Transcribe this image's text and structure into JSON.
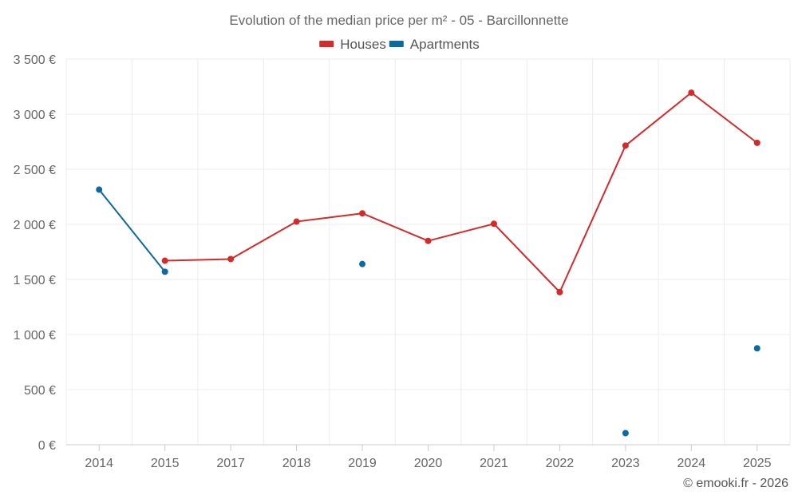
{
  "chart_data": {
    "type": "line",
    "title": "Evolution of the median price per m² - 05 - Barcillonnette",
    "categories": [
      "2014",
      "2015",
      "2017",
      "2018",
      "2019",
      "2020",
      "2021",
      "2022",
      "2023",
      "2024",
      "2025"
    ],
    "series": [
      {
        "name": "Houses",
        "color": "#d42a2a",
        "values": [
          null,
          1670,
          1685,
          2025,
          2100,
          1850,
          2005,
          1385,
          2715,
          3195,
          2740
        ]
      },
      {
        "name": "Apartments",
        "color": "#0b6aa0",
        "values": [
          2315,
          1570,
          null,
          null,
          1640,
          null,
          null,
          null,
          105,
          null,
          875
        ]
      }
    ],
    "y_ticks": [
      0,
      500,
      1000,
      1500,
      2000,
      2500,
      3000,
      3500
    ],
    "y_tick_labels": [
      "0 €",
      "500 €",
      "1 000 €",
      "1 500 €",
      "2 000 €",
      "2 500 €",
      "3 000 €",
      "3 500 €"
    ],
    "ylim": [
      0,
      3500
    ],
    "xlabel": "",
    "ylabel": "",
    "grid": true,
    "legend_position": "top-center"
  },
  "credit": "© emooki.fr - 2026"
}
